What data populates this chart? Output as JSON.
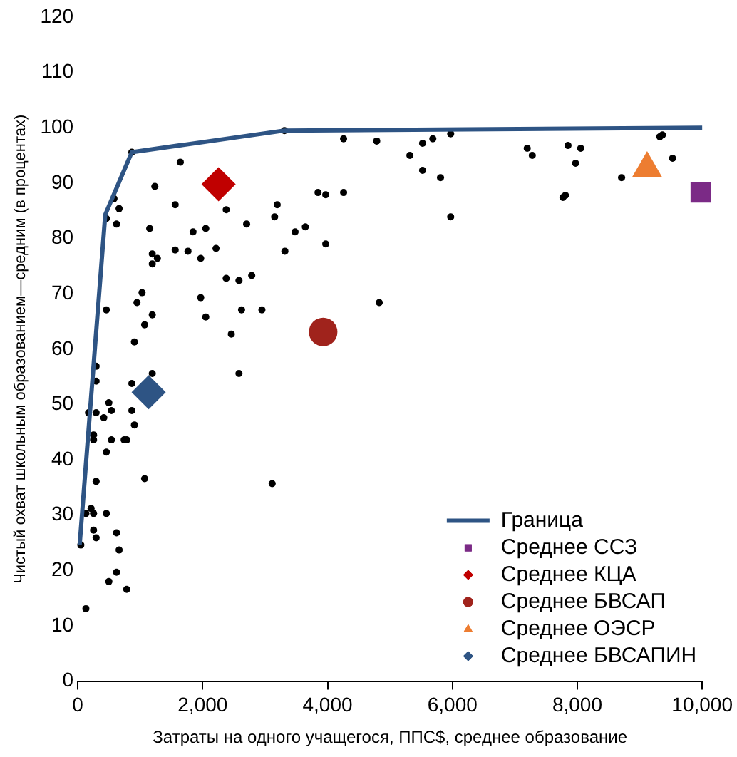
{
  "chart_data": {
    "type": "scatter",
    "xlabel": "Затраты на одного учащегося, ППС$, среднее образование",
    "ylabel": "Чистый охват школьным образованием—средним (в процентах)",
    "xlim": [
      0,
      10000
    ],
    "xticks": [
      0,
      {
        "value": 2000,
        "label": "2,000"
      },
      {
        "value": 4000,
        "label": "4,000"
      },
      {
        "value": 6000,
        "label": "6,000"
      },
      {
        "value": 8000,
        "label": "8,000"
      },
      {
        "value": 10000,
        "label": "10,000"
      }
    ],
    "ylim": [
      0,
      120
    ],
    "yticks": [
      0,
      10,
      20,
      30,
      40,
      50,
      60,
      70,
      80,
      90,
      100,
      110,
      120
    ],
    "grid": false,
    "legend": "bottom right",
    "series": [
      {
        "name": "Граница",
        "type": "line",
        "color": "#2e5484",
        "marker": "none",
        "x": [
          30,
          440,
          866,
          3310,
          10000
        ],
        "values": [
          24.6,
          84.3,
          95.6,
          99.5,
          100
        ]
      },
      {
        "type": "scatter",
        "color": "#000000",
        "marker": "circle",
        "x": [
          866,
          1642,
          1234,
          580,
          662,
          458,
          621,
          1560,
          2377,
          1152,
          1846,
          2050,
          2704,
          3194,
          3153,
          3480,
          3644,
          3971,
          3317,
          1193,
          1275,
          1193,
          1560,
          1765,
          1969,
          2214,
          2377,
          2582,
          2786,
          1029,
          948,
          1969,
          2623,
          2949,
          458,
          1193,
          1071,
          2050,
          2459,
          907,
          294,
          2582,
          294,
          3310,
          4257,
          4788,
          5319,
          5522,
          5686,
          5972,
          5522,
          5809,
          7198,
          7279,
          7851,
          8055,
          7973,
          7770,
          7810,
          8709,
          9363,
          9322,
          9526,
          3848,
          3971,
          4257,
          5972,
          4828,
          866,
          1193,
          498,
          539,
          172,
          294,
          417,
          866,
          907,
          253,
          253,
          539,
          743,
          784,
          458,
          294,
          1071,
          3113,
          130,
          213,
          253,
          458,
          49,
          253,
          294,
          621,
          662,
          621,
          498,
          784,
          130
        ],
        "values": [
          95.6,
          93.8,
          89.4,
          87.2,
          85.4,
          83.6,
          82.6,
          86.1,
          85.2,
          81.8,
          81.2,
          81.8,
          82.6,
          86.1,
          83.9,
          81.2,
          82.1,
          79.0,
          77.7,
          77.2,
          76.4,
          75.4,
          77.9,
          77.7,
          76.4,
          78.2,
          72.8,
          72.4,
          73.3,
          70.2,
          68.4,
          69.3,
          67.1,
          67.1,
          67.1,
          66.2,
          64.4,
          65.8,
          62.7,
          61.3,
          56.9,
          55.6,
          54.2,
          99.5,
          98.0,
          97.6,
          95.0,
          97.2,
          98.0,
          98.9,
          92.3,
          91.0,
          96.3,
          95.0,
          96.8,
          96.3,
          93.6,
          87.4,
          87.8,
          91.0,
          98.7,
          98.4,
          94.5,
          88.3,
          87.9,
          88.3,
          83.9,
          68.4,
          53.8,
          55.6,
          50.3,
          48.9,
          48.5,
          48.5,
          47.6,
          48.9,
          46.3,
          44.5,
          43.6,
          43.6,
          43.6,
          43.6,
          41.4,
          36.1,
          36.6,
          35.7,
          30.3,
          31.2,
          30.3,
          30.3,
          24.6,
          27.3,
          25.9,
          26.8,
          23.7,
          19.7,
          18.0,
          16.6,
          13.1
        ]
      },
      {
        "name": "Среднее ССЗ",
        "type": "scatter",
        "color": "#7b2a86",
        "marker": "square",
        "x": [
          9975
        ],
        "values": [
          88.3
        ]
      },
      {
        "name": "Среднее КЦА",
        "type": "scatter",
        "color": "#c00000",
        "marker": "diamond",
        "x": [
          2255
        ],
        "values": [
          89.8
        ]
      },
      {
        "name": "Среднее БВСАП",
        "type": "scatter",
        "color": "#a0231c",
        "marker": "circle",
        "x": [
          3930
        ],
        "values": [
          63.1
        ]
      },
      {
        "name": "Среднее ОЭСР",
        "type": "scatter",
        "color": "#ed7d31",
        "marker": "triangle",
        "x": [
          9118
        ],
        "values": [
          92.7
        ]
      },
      {
        "name": "Среднее БВСАПИН",
        "type": "scatter",
        "color": "#2e5484",
        "marker": "diamond",
        "x": [
          1135
        ],
        "values": [
          52.2
        ]
      }
    ]
  }
}
